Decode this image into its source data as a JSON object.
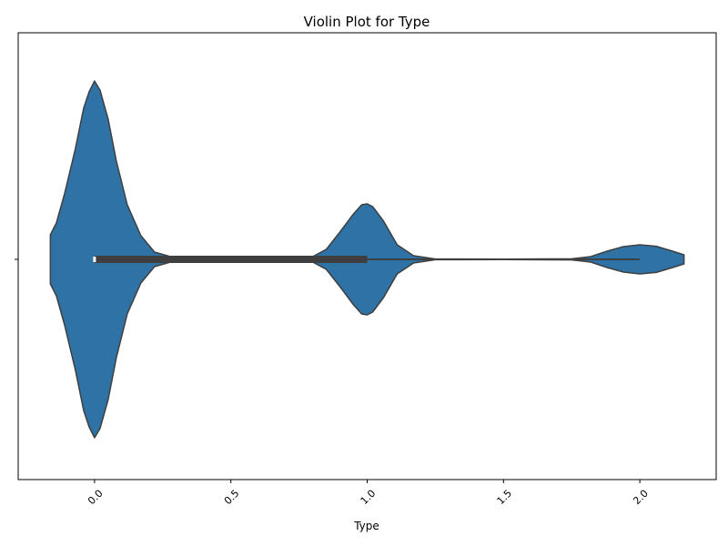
{
  "chart_data": {
    "type": "violin",
    "title": "Violin Plot for Type",
    "xlabel": "Type",
    "ylabel": "",
    "xlim": [
      -0.28,
      2.28
    ],
    "x_ticks": [
      0.0,
      0.5,
      1.0,
      1.5,
      2.0
    ],
    "x_tick_labels": [
      "0.0",
      "0.5",
      "1.0",
      "1.5",
      "2.0"
    ],
    "orientation": "horizontal",
    "color": "#2e72a6",
    "edge_color": "#3f3f3f",
    "grid": false,
    "density": [
      {
        "x": -0.162,
        "w": 0.135
      },
      {
        "x": -0.14,
        "w": 0.2
      },
      {
        "x": -0.11,
        "w": 0.36
      },
      {
        "x": -0.07,
        "w": 0.61
      },
      {
        "x": -0.04,
        "w": 0.83
      },
      {
        "x": -0.02,
        "w": 0.92
      },
      {
        "x": 0.0,
        "w": 0.98
      },
      {
        "x": 0.02,
        "w": 0.93
      },
      {
        "x": 0.05,
        "w": 0.77
      },
      {
        "x": 0.08,
        "w": 0.54
      },
      {
        "x": 0.12,
        "w": 0.3
      },
      {
        "x": 0.17,
        "w": 0.13
      },
      {
        "x": 0.22,
        "w": 0.04
      },
      {
        "x": 0.3,
        "w": 0.006
      },
      {
        "x": 0.55,
        "w": 0.005
      },
      {
        "x": 0.8,
        "w": 0.015
      },
      {
        "x": 0.85,
        "w": 0.055
      },
      {
        "x": 0.9,
        "w": 0.15
      },
      {
        "x": 0.95,
        "w": 0.25
      },
      {
        "x": 0.98,
        "w": 0.3
      },
      {
        "x": 1.0,
        "w": 0.305
      },
      {
        "x": 1.02,
        "w": 0.29
      },
      {
        "x": 1.06,
        "w": 0.21
      },
      {
        "x": 1.11,
        "w": 0.08
      },
      {
        "x": 1.17,
        "w": 0.02
      },
      {
        "x": 1.25,
        "w": 0.002
      },
      {
        "x": 1.5,
        "w": 0.001
      },
      {
        "x": 1.75,
        "w": 0.003
      },
      {
        "x": 1.82,
        "w": 0.015
      },
      {
        "x": 1.88,
        "w": 0.045
      },
      {
        "x": 1.94,
        "w": 0.07
      },
      {
        "x": 2.0,
        "w": 0.08
      },
      {
        "x": 2.06,
        "w": 0.072
      },
      {
        "x": 2.12,
        "w": 0.045
      },
      {
        "x": 2.162,
        "w": 0.025
      }
    ],
    "box": {
      "whisker_low": 0.0,
      "q1": 0.0,
      "median": 0.0,
      "q3": 1.0,
      "whisker_high": 2.0
    }
  }
}
